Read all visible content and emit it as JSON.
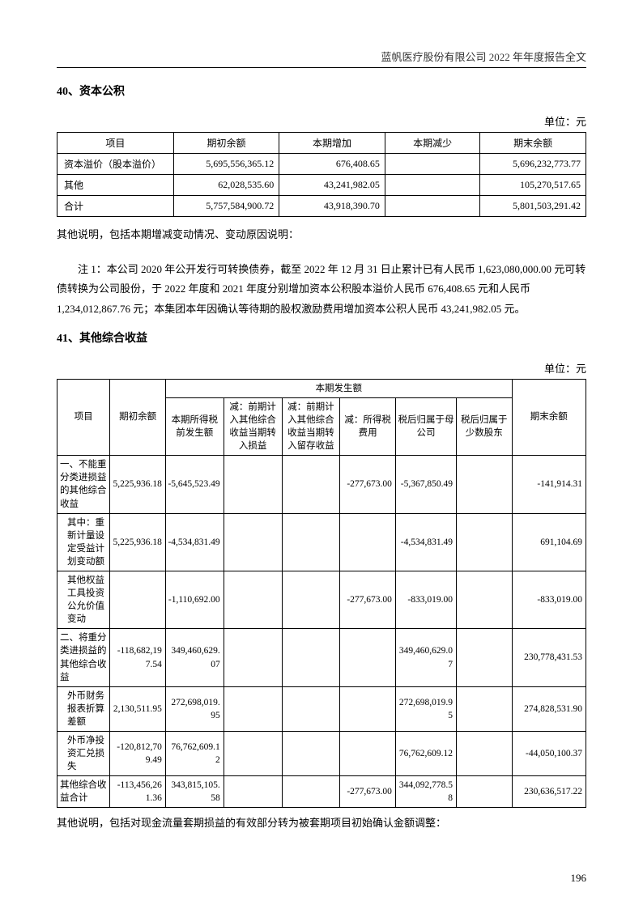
{
  "header": "蓝帆医疗股份有限公司 2022 年年度报告全文",
  "section40": {
    "title": "40、资本公积",
    "unit": "单位：元",
    "columns": [
      "项目",
      "期初余额",
      "本期增加",
      "本期减少",
      "期末余额"
    ],
    "rows": [
      {
        "label": "资本溢价（股本溢价）",
        "c1": "5,695,556,365.12",
        "c2": "676,408.65",
        "c3": "",
        "c4": "5,696,232,773.77"
      },
      {
        "label": "其他",
        "c1": "62,028,535.60",
        "c2": "43,241,982.05",
        "c3": "",
        "c4": "105,270,517.65"
      },
      {
        "label": "合计",
        "c1": "5,757,584,900.72",
        "c2": "43,918,390.70",
        "c3": "",
        "c4": "5,801,503,291.42"
      }
    ],
    "note1": "其他说明，包括本期增减变动情况、变动原因说明：",
    "note2": "注 1：本公司 2020 年公开发行可转换债券，截至 2022 年 12 月 31 日止累计已有人民币 1,623,080,000.00 元可转债转换为公司股份，于 2022 年度和 2021 年度分别增加资本公积股本溢价人民币 676,408.65 元和人民币 1,234,012,867.76 元；本集团本年因确认等待期的股权激励费用增加资本公积人民币 43,241,982.05 元。"
  },
  "section41": {
    "title": "41、其他综合收益",
    "unit": "单位：元",
    "header_group": "本期发生额",
    "columns": {
      "c0": "项目",
      "c1": "期初余额",
      "c2": "本期所得税前发生额",
      "c3": "减：前期计入其他综合收益当期转入损益",
      "c4": "减：前期计入其他综合收益当期转入留存收益",
      "c5": "减：所得税费用",
      "c6": "税后归属于母公司",
      "c7": "税后归属于少数股东",
      "c8": "期末余额"
    },
    "rows": [
      {
        "label": "一、不能重分类进损益的其他综合收益",
        "c1": "5,225,936.18",
        "c2": "-5,645,523.49",
        "c3": "",
        "c4": "",
        "c5": "-277,673.00",
        "c6": "-5,367,850.49",
        "c7": "",
        "c8": "-141,914.31"
      },
      {
        "label": "其中：重新计量设定受益计划变动额",
        "c1": "5,225,936.18",
        "c2": "-4,534,831.49",
        "c3": "",
        "c4": "",
        "c5": "",
        "c6": "-4,534,831.49",
        "c7": "",
        "c8": "691,104.69"
      },
      {
        "label": "其他权益工具投资公允价值变动",
        "c1": "",
        "c2": "-1,110,692.00",
        "c3": "",
        "c4": "",
        "c5": "-277,673.00",
        "c6": "-833,019.00",
        "c7": "",
        "c8": "-833,019.00"
      },
      {
        "label": "二、将重分类进损益的其他综合收益",
        "c1": "-118,682,197.54",
        "c2": "349,460,629.07",
        "c3": "",
        "c4": "",
        "c5": "",
        "c6": "349,460,629.07",
        "c7": "",
        "c8": "230,778,431.53"
      },
      {
        "label": "外币财务报表折算差额",
        "c1": "2,130,511.95",
        "c2": "272,698,019.95",
        "c3": "",
        "c4": "",
        "c5": "",
        "c6": "272,698,019.95",
        "c7": "",
        "c8": "274,828,531.90"
      },
      {
        "label": "外币净投资汇兑损失",
        "c1": "-120,812,709.49",
        "c2": "76,762,609.12",
        "c3": "",
        "c4": "",
        "c5": "",
        "c6": "76,762,609.12",
        "c7": "",
        "c8": "-44,050,100.37"
      },
      {
        "label": "其他综合收益合计",
        "c1": "-113,456,261.36",
        "c2": "343,815,105.58",
        "c3": "",
        "c4": "",
        "c5": "-277,673.00",
        "c6": "344,092,778.58",
        "c7": "",
        "c8": "230,636,517.22"
      }
    ],
    "footnote": "其他说明，包括对现金流量套期损益的有效部分转为被套期项目初始确认金额调整："
  },
  "page_number": "196"
}
